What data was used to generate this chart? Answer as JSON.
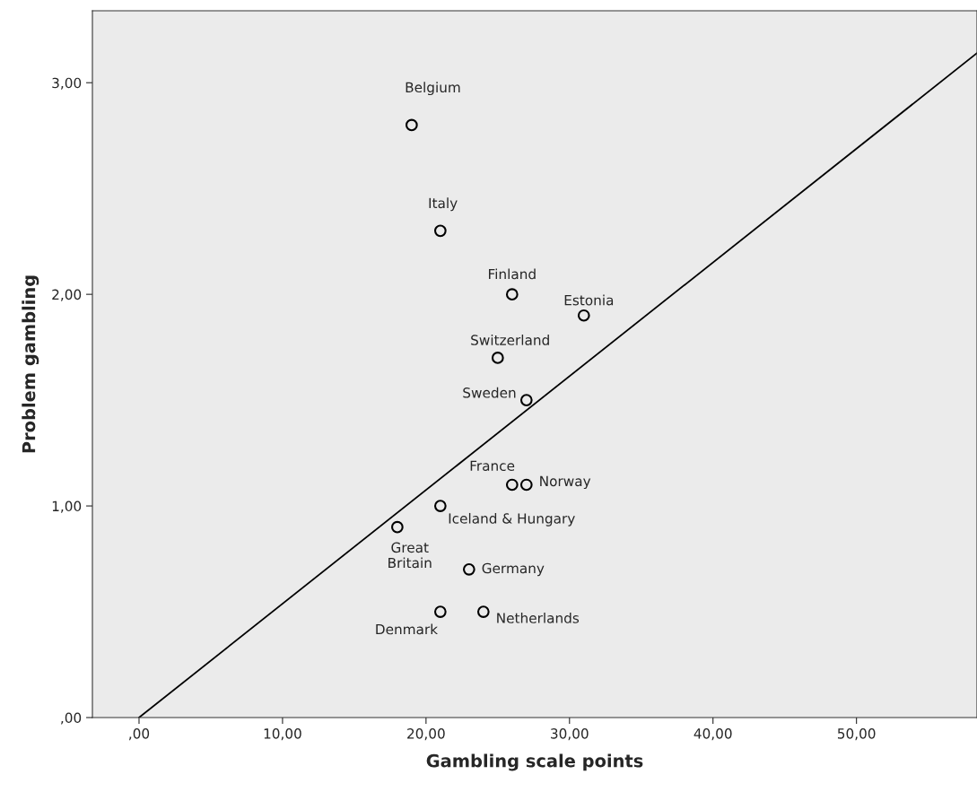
{
  "chart_data": {
    "type": "scatter",
    "xlabel": "Gambling scale points",
    "ylabel": "Problem gambling",
    "series": [
      {
        "color": "#000000",
        "marker": "circle",
        "x": [
          19,
          21,
          26,
          31,
          25,
          27,
          26,
          27,
          21,
          18,
          23,
          21,
          24
        ],
        "values": [
          2.8,
          2.3,
          2.0,
          1.9,
          1.7,
          1.5,
          1.1,
          1.1,
          1.0,
          0.9,
          0.7,
          0.5,
          0.5
        ]
      },
      {
        "type": "line",
        "color": "#000000",
        "marker": "none",
        "line_style": "solid",
        "x": [
          0,
          58.4
        ],
        "values": [
          0,
          3.14
        ]
      }
    ],
    "annotations": [
      {
        "text": "Belgium",
        "x": 19,
        "y": 2.8
      },
      {
        "text": "Italy",
        "x": 21,
        "y": 2.3
      },
      {
        "text": "Finland",
        "x": 26,
        "y": 2.0
      },
      {
        "text": "Estonia",
        "x": 31,
        "y": 1.9
      },
      {
        "text": "Switzerland",
        "x": 25,
        "y": 1.7
      },
      {
        "text": "Sweden",
        "x": 27,
        "y": 1.5
      },
      {
        "text": "France",
        "x": 26,
        "y": 1.1
      },
      {
        "text": "Norway",
        "x": 27,
        "y": 1.1
      },
      {
        "text": "Iceland & Hungary",
        "x": 21,
        "y": 1.0
      },
      {
        "text": "Great\nBritain",
        "x": 18,
        "y": 0.9
      },
      {
        "text": "Germany",
        "x": 23,
        "y": 0.7
      },
      {
        "text": "Denmark",
        "x": 21,
        "y": 0.5
      },
      {
        "text": "Netherlands",
        "x": 24,
        "y": 0.5
      }
    ],
    "xlim": [
      -3.25,
      58.4
    ],
    "ylim": [
      0,
      3.34
    ],
    "xticks": [
      {
        "value": 0,
        "label": ",00"
      },
      {
        "value": 10,
        "label": "10,00"
      },
      {
        "value": 20,
        "label": "20,00"
      },
      {
        "value": 30,
        "label": "30,00"
      },
      {
        "value": 40,
        "label": "40,00"
      },
      {
        "value": 50,
        "label": "50,00"
      }
    ],
    "yticks": [
      {
        "value": 0,
        "label": ",00"
      },
      {
        "value": 1,
        "label": "1,00"
      },
      {
        "value": 2,
        "label": "2,00"
      },
      {
        "value": 3,
        "label": "3,00"
      }
    ],
    "grid": false,
    "legend": false
  }
}
